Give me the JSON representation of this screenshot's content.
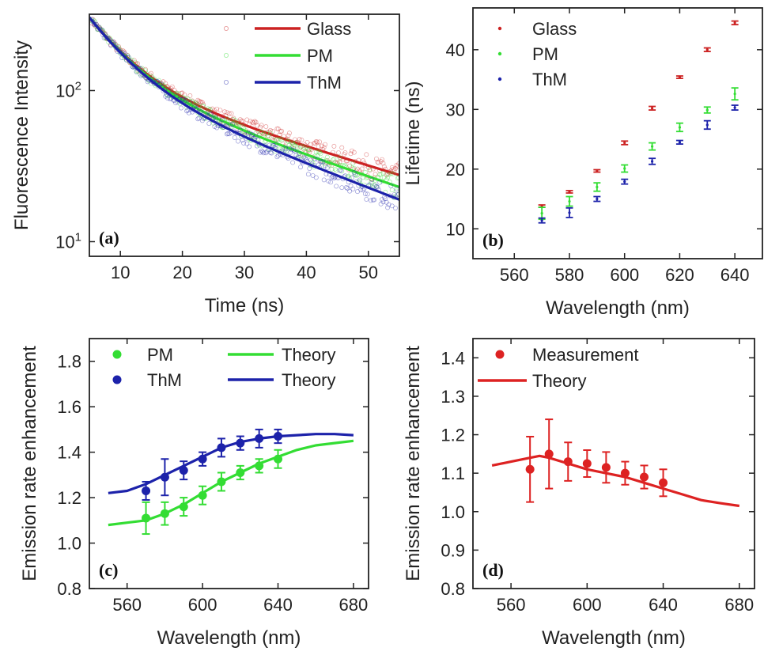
{
  "chart_data": [
    {
      "panel": "(a)",
      "type": "scatter",
      "xlabel": "Time (ns)",
      "ylabel": "Fluorescence Intensity",
      "xlim": [
        5,
        55
      ],
      "ylim": [
        8,
        320
      ],
      "yscale": "log",
      "x_ticks": [
        10,
        20,
        30,
        40,
        50
      ],
      "y_ticks": [
        {
          "value": 10,
          "base": "10",
          "exp": "1"
        },
        {
          "value": 100,
          "base": "10",
          "exp": "2"
        }
      ],
      "legend_position": "top-right",
      "series": [
        {
          "name": "Glass",
          "color": "#cc2222",
          "A1": 190,
          "tau1": 6,
          "A2": 115,
          "tau2": 35
        },
        {
          "name": "PM",
          "color": "#33dd33",
          "A1": 190,
          "tau1": 6,
          "A2": 115,
          "tau2": 31
        },
        {
          "name": "ThM",
          "color": "#1c22aa",
          "A1": 190,
          "tau1": 6,
          "A2": 115,
          "tau2": 27.7
        }
      ]
    },
    {
      "panel": "(b)",
      "type": "scatter",
      "xlabel": "Wavelength (nm)",
      "ylabel": "Lifetime (ns)",
      "xlim": [
        545,
        650
      ],
      "ylim": [
        5,
        47
      ],
      "x_ticks": [
        560,
        580,
        600,
        620,
        640
      ],
      "y_ticks": [
        10,
        20,
        30,
        40
      ],
      "legend_position": "top-left",
      "x": [
        570,
        580,
        590,
        600,
        610,
        620,
        630,
        640
      ],
      "series": [
        {
          "name": "Glass",
          "color": "#cc2222",
          "values": [
            13.8,
            16.2,
            19.7,
            24.4,
            30.2,
            35.4,
            40.0,
            44.5
          ],
          "errors": [
            0.2,
            0.2,
            0.2,
            0.3,
            0.3,
            0.2,
            0.3,
            0.3
          ]
        },
        {
          "name": "PM",
          "color": "#33dd33",
          "values": [
            12.6,
            14.6,
            17.0,
            20.1,
            23.8,
            27.0,
            29.9,
            32.6
          ],
          "errors": [
            1.0,
            0.8,
            0.7,
            0.6,
            0.6,
            0.7,
            0.5,
            1.0
          ]
        },
        {
          "name": "ThM",
          "color": "#1c22aa",
          "values": [
            11.4,
            12.7,
            15.0,
            17.9,
            21.3,
            24.5,
            27.4,
            30.3
          ],
          "errors": [
            0.4,
            0.8,
            0.4,
            0.4,
            0.5,
            0.3,
            0.7,
            0.4
          ]
        }
      ]
    },
    {
      "panel": "(c)",
      "type": "scatter",
      "xlabel": "Wavelength (nm)",
      "ylabel": "Emission rate enhancement",
      "xlim": [
        540,
        688
      ],
      "ylim": [
        0.8,
        1.9
      ],
      "x_ticks": [
        560,
        600,
        640,
        680
      ],
      "y_ticks": [
        "0.8",
        "1.0",
        "1.2",
        "1.4",
        "1.6",
        "1.8"
      ],
      "legend_position": "top",
      "x": [
        570,
        580,
        590,
        600,
        610,
        620,
        630,
        640
      ],
      "series": [
        {
          "name": "PM",
          "color": "#33dd33",
          "values": [
            1.11,
            1.13,
            1.16,
            1.21,
            1.27,
            1.31,
            1.34,
            1.37
          ],
          "errors": [
            0.07,
            0.05,
            0.04,
            0.04,
            0.04,
            0.03,
            0.03,
            0.04
          ]
        },
        {
          "name": "ThM",
          "color": "#1c22aa",
          "values": [
            1.23,
            1.29,
            1.32,
            1.37,
            1.42,
            1.44,
            1.46,
            1.47
          ],
          "errors": [
            0.04,
            0.08,
            0.04,
            0.03,
            0.04,
            0.03,
            0.04,
            0.03
          ]
        }
      ],
      "theory": [
        {
          "name": "Theory",
          "color": "#33dd33",
          "x": [
            550,
            560,
            570,
            580,
            590,
            600,
            610,
            620,
            630,
            640,
            650,
            660,
            670,
            680
          ],
          "values": [
            1.08,
            1.09,
            1.1,
            1.13,
            1.17,
            1.22,
            1.27,
            1.31,
            1.35,
            1.38,
            1.41,
            1.43,
            1.44,
            1.45
          ]
        },
        {
          "name": "Theory",
          "color": "#1c22aa",
          "x": [
            550,
            560,
            570,
            580,
            590,
            600,
            610,
            620,
            630,
            640,
            650,
            660,
            670,
            680
          ],
          "values": [
            1.22,
            1.23,
            1.26,
            1.3,
            1.34,
            1.38,
            1.42,
            1.445,
            1.46,
            1.47,
            1.475,
            1.48,
            1.48,
            1.475
          ]
        }
      ]
    },
    {
      "panel": "(d)",
      "type": "scatter",
      "xlabel": "Wavelength (nm)",
      "ylabel": "Emission rate enhancement",
      "xlim": [
        540,
        688
      ],
      "ylim": [
        0.8,
        1.45
      ],
      "x_ticks": [
        560,
        600,
        640,
        680
      ],
      "y_ticks": [
        "0.8",
        "0.9",
        "1.0",
        "1.1",
        "1.2",
        "1.3",
        "1.4"
      ],
      "legend_position": "top-left",
      "x": [
        570,
        580,
        590,
        600,
        610,
        620,
        630,
        640
      ],
      "series": [
        {
          "name": "Measurement",
          "color": "#dd2222",
          "values": [
            1.11,
            1.15,
            1.13,
            1.125,
            1.115,
            1.1,
            1.09,
            1.075
          ],
          "errors": [
            0.085,
            0.09,
            0.05,
            0.035,
            0.04,
            0.03,
            0.03,
            0.035
          ]
        }
      ],
      "theory": [
        {
          "name": "Theory",
          "color": "#dd2222",
          "x": [
            550,
            560,
            570,
            575,
            580,
            590,
            600,
            610,
            620,
            630,
            640,
            650,
            660,
            670,
            680
          ],
          "values": [
            1.12,
            1.13,
            1.14,
            1.145,
            1.14,
            1.125,
            1.11,
            1.1,
            1.09,
            1.075,
            1.06,
            1.045,
            1.03,
            1.022,
            1.015
          ]
        }
      ]
    }
  ]
}
